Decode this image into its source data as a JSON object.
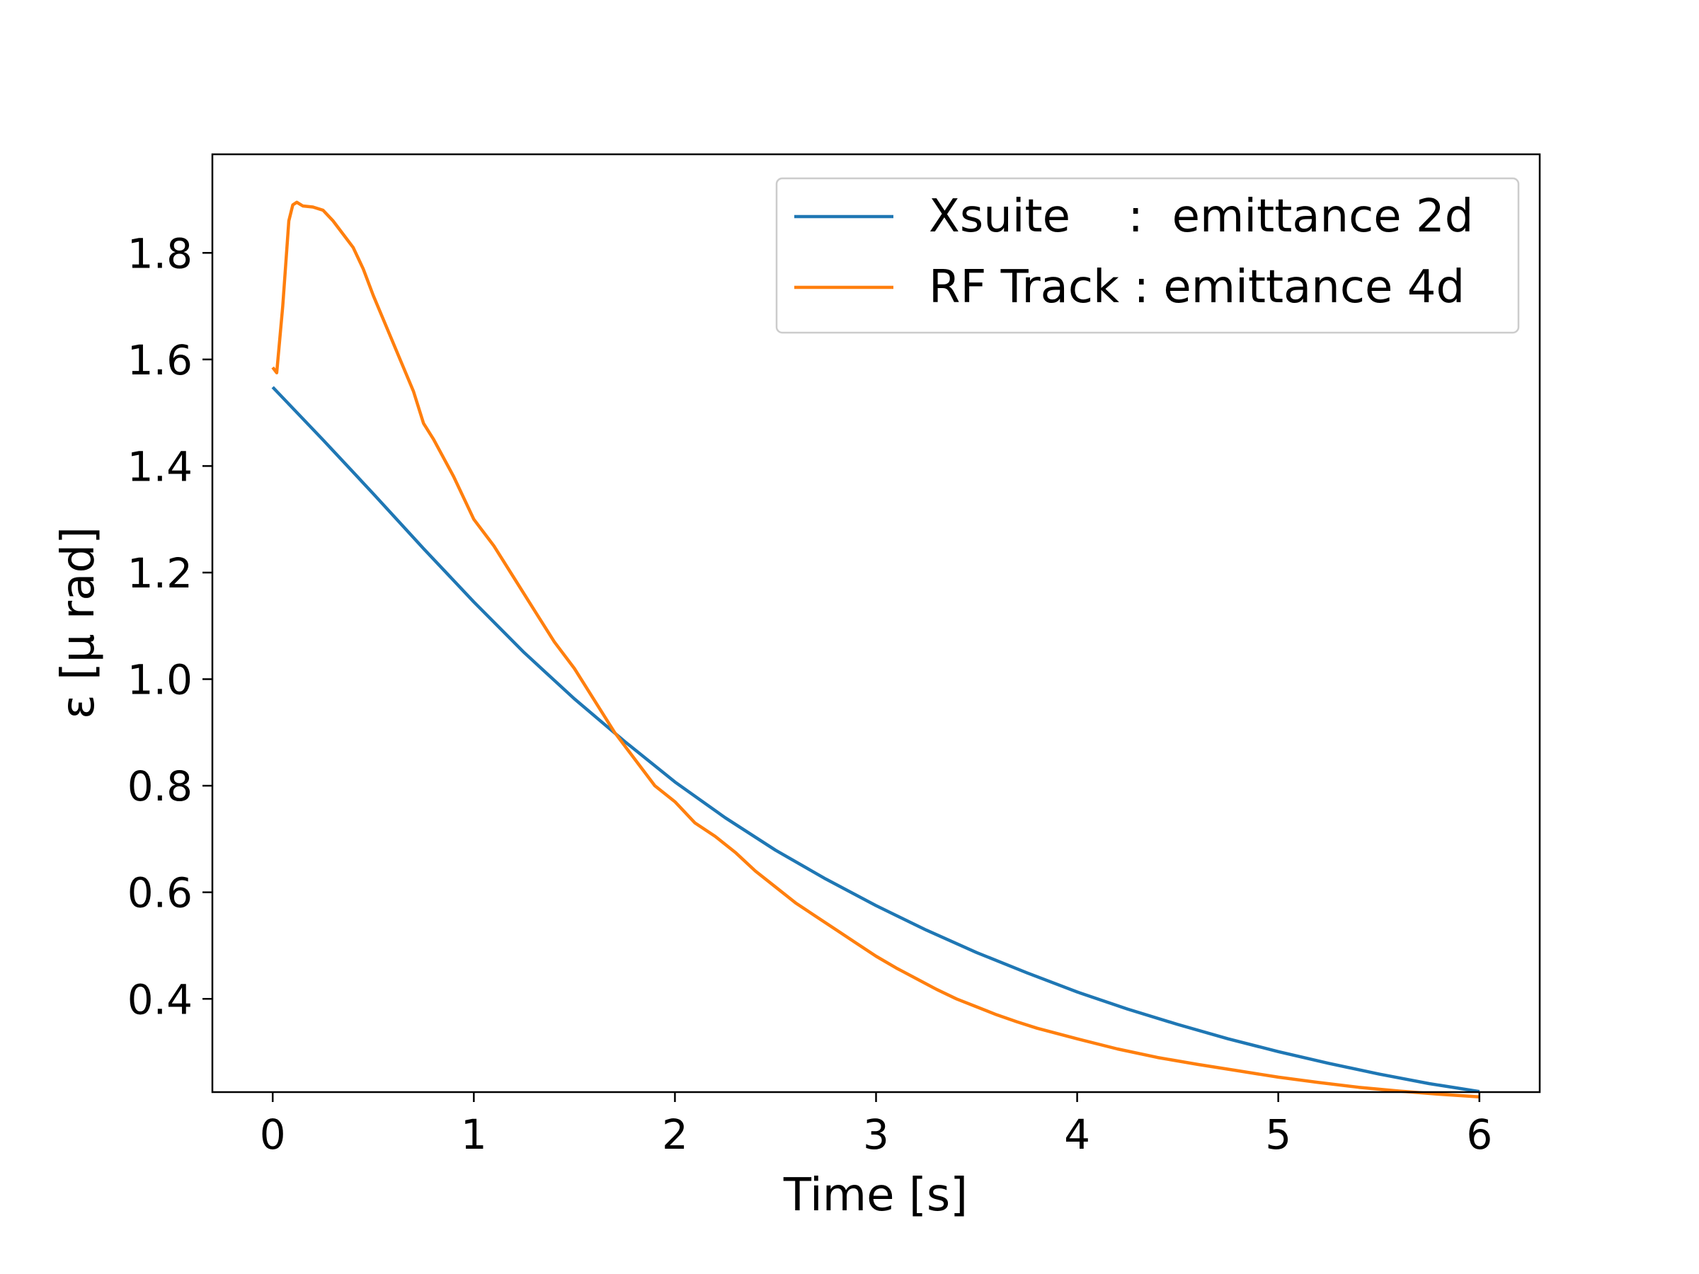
{
  "chart_data": {
    "type": "line",
    "title": "",
    "xlabel": "Time [s]",
    "ylabel": "ε [μ rad]",
    "xlim": [
      -0.3,
      6.3
    ],
    "ylim": [
      0.225,
      1.985
    ],
    "xticks": [
      0,
      1,
      2,
      3,
      4,
      5,
      6
    ],
    "yticks": [
      0.4,
      0.6,
      0.8,
      1.0,
      1.2,
      1.4,
      1.6,
      1.8
    ],
    "xtick_labels": [
      "0",
      "1",
      "2",
      "3",
      "4",
      "5",
      "6"
    ],
    "ytick_labels": [
      "0.4",
      "0.6",
      "0.8",
      "1.0",
      "1.2",
      "1.4",
      "1.6",
      "1.8"
    ],
    "grid": false,
    "legend_position": "top-right",
    "series": [
      {
        "name": "Xsuite    :  emittance 2d",
        "color": "#1f77b4",
        "x": [
          0.0,
          0.25,
          0.5,
          0.75,
          1.0,
          1.25,
          1.5,
          1.75,
          2.0,
          2.25,
          2.5,
          2.75,
          3.0,
          3.25,
          3.5,
          3.75,
          4.0,
          4.25,
          4.5,
          4.75,
          5.0,
          5.25,
          5.5,
          5.75,
          6.0
        ],
        "y": [
          1.548,
          1.449,
          1.348,
          1.245,
          1.145,
          1.05,
          0.963,
          0.883,
          0.807,
          0.74,
          0.679,
          0.625,
          0.575,
          0.529,
          0.487,
          0.449,
          0.413,
          0.381,
          0.352,
          0.325,
          0.301,
          0.279,
          0.259,
          0.241,
          0.226
        ]
      },
      {
        "name": "RF Track : emittance 4d",
        "color": "#ff7f0e",
        "x": [
          0.0,
          0.02,
          0.05,
          0.08,
          0.1,
          0.12,
          0.15,
          0.2,
          0.25,
          0.3,
          0.35,
          0.4,
          0.45,
          0.5,
          0.6,
          0.7,
          0.75,
          0.8,
          0.9,
          1.0,
          1.1,
          1.2,
          1.3,
          1.4,
          1.5,
          1.6,
          1.7,
          1.8,
          1.9,
          2.0,
          2.1,
          2.2,
          2.3,
          2.4,
          2.5,
          2.6,
          2.7,
          2.8,
          2.9,
          3.0,
          3.1,
          3.2,
          3.3,
          3.4,
          3.5,
          3.6,
          3.7,
          3.8,
          3.9,
          4.0,
          4.2,
          4.4,
          4.6,
          4.8,
          5.0,
          5.2,
          5.4,
          5.6,
          5.8,
          6.0
        ],
        "y": [
          1.585,
          1.575,
          1.7,
          1.86,
          1.89,
          1.895,
          1.888,
          1.886,
          1.88,
          1.86,
          1.835,
          1.81,
          1.77,
          1.72,
          1.63,
          1.54,
          1.48,
          1.45,
          1.38,
          1.3,
          1.25,
          1.19,
          1.13,
          1.07,
          1.02,
          0.96,
          0.9,
          0.85,
          0.8,
          0.77,
          0.73,
          0.705,
          0.675,
          0.64,
          0.61,
          0.58,
          0.555,
          0.53,
          0.505,
          0.48,
          0.458,
          0.438,
          0.418,
          0.4,
          0.385,
          0.37,
          0.357,
          0.345,
          0.335,
          0.325,
          0.306,
          0.29,
          0.277,
          0.265,
          0.253,
          0.243,
          0.234,
          0.227,
          0.221,
          0.216
        ]
      }
    ]
  }
}
